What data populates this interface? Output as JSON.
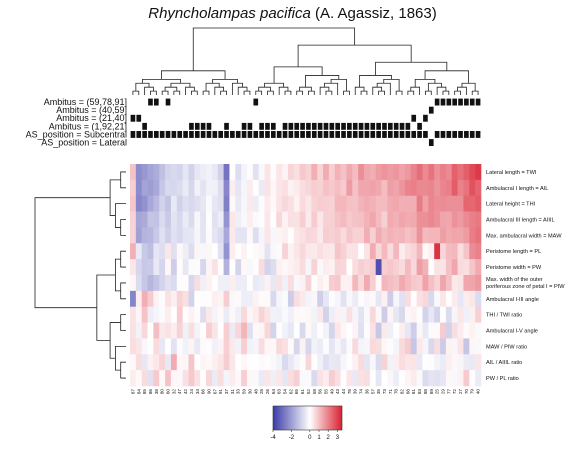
{
  "chart_data": {
    "type": "heatmap",
    "title_italic": "Rhyncholampas pacifica",
    "title_rest": " (A. Agassiz, 1863)",
    "columns": [
      "87",
      "84",
      "85",
      "86",
      "38",
      "80",
      "60",
      "32",
      "47",
      "42",
      "24",
      "34",
      "66",
      "90",
      "67",
      "91",
      "37",
      "31",
      "33",
      "59",
      "30",
      "48",
      "28",
      "26",
      "64",
      "63",
      "54",
      "62",
      "65",
      "61",
      "52",
      "58",
      "56",
      "55",
      "49",
      "43",
      "44",
      "76",
      "39",
      "74",
      "36",
      "57",
      "35",
      "73",
      "71",
      "78",
      "82",
      "68",
      "81",
      "83",
      "88",
      "89",
      "25",
      "29",
      "77",
      "72",
      "27",
      "70",
      "79",
      "40"
    ],
    "rows": [
      "Lateral length = TWI",
      "Ambulacral I length = AIL",
      "Lateral height = THI",
      "Ambulacral III length = AIIIL",
      "Max. ambulacral width = MAW",
      "Peristome length = PL",
      "Peristome width = PW",
      "Max. width of the outer poriferous zone of petal I = PIW",
      "Ambulacral I-III angle",
      "THI / TWI ratio",
      "Ambulacral I-V angle",
      "MAW / PIW ratio",
      "AIL / AIIIL ratio",
      "PW / PL ratio"
    ],
    "annotation_labels": [
      "Ambitus = (59,78,91]",
      "Ambitus = (40,59]",
      "Ambitus = (21,40]",
      "Ambitus = (1,92,21]",
      "AS_position = Subcentral",
      "AS_position = Lateral"
    ],
    "annotation_present": [
      [
        0,
        0,
        0,
        1,
        1,
        0,
        1,
        0,
        0,
        0,
        0,
        0,
        0,
        0,
        0,
        0,
        0,
        0,
        0,
        0,
        0,
        1,
        0,
        0,
        0,
        0,
        0,
        0,
        0,
        0,
        0,
        0,
        0,
        0,
        0,
        0,
        0,
        0,
        0,
        0,
        0,
        0,
        0,
        0,
        0,
        0,
        0,
        0,
        0,
        0,
        0,
        0,
        1,
        1,
        1,
        1,
        1,
        1,
        1,
        1
      ],
      [
        0,
        0,
        0,
        0,
        0,
        0,
        0,
        0,
        0,
        0,
        0,
        0,
        0,
        0,
        0,
        0,
        0,
        0,
        0,
        0,
        0,
        0,
        0,
        0,
        0,
        0,
        0,
        0,
        0,
        0,
        0,
        0,
        0,
        0,
        0,
        0,
        0,
        0,
        0,
        0,
        0,
        0,
        0,
        0,
        0,
        0,
        0,
        0,
        0,
        0,
        0,
        1,
        0,
        0,
        0,
        0,
        0,
        0,
        0,
        0
      ],
      [
        1,
        1,
        0,
        0,
        0,
        0,
        0,
        0,
        0,
        0,
        0,
        0,
        0,
        0,
        0,
        0,
        0,
        0,
        0,
        0,
        0,
        0,
        0,
        0,
        0,
        0,
        0,
        0,
        0,
        0,
        0,
        0,
        0,
        0,
        0,
        0,
        0,
        0,
        0,
        0,
        0,
        0,
        0,
        0,
        0,
        0,
        0,
        0,
        1,
        0,
        1,
        0,
        0,
        0,
        0,
        0,
        0,
        0,
        0,
        0
      ],
      [
        0,
        0,
        1,
        0,
        0,
        0,
        0,
        0,
        0,
        0,
        1,
        1,
        1,
        1,
        0,
        0,
        1,
        0,
        0,
        1,
        1,
        0,
        1,
        1,
        1,
        0,
        1,
        1,
        1,
        1,
        1,
        1,
        1,
        1,
        1,
        1,
        1,
        1,
        1,
        1,
        1,
        1,
        1,
        1,
        1,
        1,
        1,
        1,
        0,
        1,
        0,
        0,
        0,
        0,
        0,
        0,
        0,
        0,
        0,
        0
      ],
      [
        1,
        1,
        1,
        1,
        1,
        1,
        1,
        1,
        1,
        1,
        1,
        1,
        1,
        1,
        1,
        1,
        1,
        1,
        1,
        1,
        1,
        1,
        1,
        1,
        1,
        1,
        1,
        1,
        1,
        1,
        1,
        1,
        1,
        1,
        1,
        1,
        1,
        1,
        1,
        1,
        1,
        1,
        1,
        1,
        1,
        1,
        1,
        1,
        1,
        1,
        1,
        0,
        1,
        1,
        1,
        1,
        1,
        1,
        1,
        1
      ],
      [
        0,
        0,
        0,
        0,
        0,
        0,
        0,
        0,
        0,
        0,
        0,
        0,
        0,
        0,
        0,
        0,
        0,
        0,
        0,
        0,
        0,
        0,
        0,
        0,
        0,
        0,
        0,
        0,
        0,
        0,
        0,
        0,
        0,
        0,
        0,
        0,
        0,
        0,
        0,
        0,
        0,
        0,
        0,
        0,
        0,
        0,
        0,
        0,
        0,
        0,
        0,
        1,
        0,
        0,
        0,
        0,
        0,
        0,
        0,
        0
      ]
    ],
    "value_range": [
      -4,
      3.5
    ],
    "legend_ticks": [
      "-4",
      "-2",
      "0",
      "1",
      "2",
      "3"
    ],
    "colors": {
      "low": "#3b3ba8",
      "mid": "#ffffff",
      "high": "#d92030"
    },
    "grid": false,
    "legend_position": "bottom-center"
  }
}
